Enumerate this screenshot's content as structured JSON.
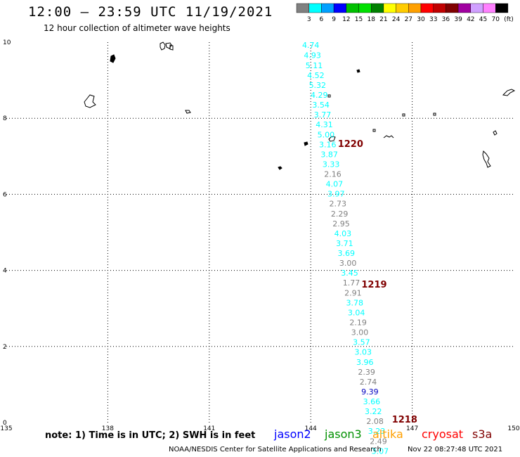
{
  "title": "12:00 – 23:59 UTC 11/19/2021",
  "subtitle": "12 hour collection of altimeter wave heights",
  "note": "note: 1) Time is in UTC; 2) SWH is in feet",
  "credit": "NOAA/NESDIS Center for Satellite Applications and Research",
  "timestamp": "Nov 22 08:27:48 UTC 2021",
  "colorbar": {
    "labels": [
      "3",
      "6",
      "9",
      "12",
      "15",
      "18",
      "21",
      "24",
      "27",
      "30",
      "33",
      "36",
      "39",
      "42",
      "45",
      "70"
    ],
    "unit": "(ft)",
    "colors": [
      "#808080",
      "#00ffff",
      "#00a0ff",
      "#0000ff",
      "#00c000",
      "#00e000",
      "#008000",
      "#ffff00",
      "#ffcc00",
      "#ffa000",
      "#ff0000",
      "#c00000",
      "#800000",
      "#a000a0",
      "#d0a0ff",
      "#ff80ff",
      "#000000"
    ]
  },
  "axes": {
    "x_ticks": [
      "135",
      "138",
      "141",
      "144",
      "147",
      "150"
    ],
    "y_ticks": [
      "0",
      "2",
      "4",
      "6",
      "8",
      "10"
    ],
    "lon_range": [
      135,
      150
    ],
    "lat_range": [
      0,
      10
    ]
  },
  "satellites": [
    {
      "name": "jason2",
      "color": "#0000ff"
    },
    {
      "name": "jason3",
      "color": "#009000"
    },
    {
      "name": "altika",
      "color": "#ffa000"
    },
    {
      "name": "cryosat",
      "color": "#ff0000"
    },
    {
      "name": "s3a",
      "color": "#800000"
    }
  ],
  "time_labels": [
    {
      "text": "1220",
      "lon": 144.8,
      "lat": 7.25
    },
    {
      "text": "1219",
      "lon": 145.5,
      "lat": 3.55
    },
    {
      "text": "1218",
      "lon": 146.4,
      "lat": 0.0
    }
  ],
  "observations": [
    {
      "lon": 144.0,
      "lat": 9.85,
      "swh": "4.74",
      "color": "#00ffff"
    },
    {
      "lon": 144.05,
      "lat": 9.58,
      "swh": "4.93",
      "color": "#00ffff"
    },
    {
      "lon": 144.1,
      "lat": 9.32,
      "swh": "5.11",
      "color": "#00ffff"
    },
    {
      "lon": 144.15,
      "lat": 9.06,
      "swh": "4.52",
      "color": "#00ffff"
    },
    {
      "lon": 144.2,
      "lat": 8.8,
      "swh": "5.32",
      "color": "#00ffff"
    },
    {
      "lon": 144.25,
      "lat": 8.54,
      "swh": "4.29",
      "color": "#00ffff"
    },
    {
      "lon": 144.3,
      "lat": 8.28,
      "swh": "3.54",
      "color": "#00ffff"
    },
    {
      "lon": 144.35,
      "lat": 8.02,
      "swh": "3.77",
      "color": "#00ffff"
    },
    {
      "lon": 144.4,
      "lat": 7.76,
      "swh": "4.31",
      "color": "#00ffff"
    },
    {
      "lon": 144.45,
      "lat": 7.5,
      "swh": "5.00",
      "color": "#00ffff"
    },
    {
      "lon": 144.5,
      "lat": 7.24,
      "swh": "3.16",
      "color": "#00ffff"
    },
    {
      "lon": 144.55,
      "lat": 6.98,
      "swh": "3.87",
      "color": "#00ffff"
    },
    {
      "lon": 144.6,
      "lat": 6.72,
      "swh": "3.33",
      "color": "#00ffff"
    },
    {
      "lon": 144.65,
      "lat": 6.46,
      "swh": "2.16",
      "color": "#808080"
    },
    {
      "lon": 144.7,
      "lat": 6.2,
      "swh": "4.07",
      "color": "#00ffff"
    },
    {
      "lon": 144.75,
      "lat": 5.94,
      "swh": "3.97",
      "color": "#00ffff"
    },
    {
      "lon": 144.8,
      "lat": 5.68,
      "swh": "2.73",
      "color": "#808080"
    },
    {
      "lon": 144.85,
      "lat": 5.42,
      "swh": "2.29",
      "color": "#808080"
    },
    {
      "lon": 144.9,
      "lat": 5.16,
      "swh": "2.95",
      "color": "#808080"
    },
    {
      "lon": 144.95,
      "lat": 4.9,
      "swh": "4.03",
      "color": "#00ffff"
    },
    {
      "lon": 145.0,
      "lat": 4.64,
      "swh": "3.71",
      "color": "#00ffff"
    },
    {
      "lon": 145.05,
      "lat": 4.38,
      "swh": "3.69",
      "color": "#00ffff"
    },
    {
      "lon": 145.1,
      "lat": 4.12,
      "swh": "3.00",
      "color": "#808080"
    },
    {
      "lon": 145.15,
      "lat": 3.86,
      "swh": "3.45",
      "color": "#00ffff"
    },
    {
      "lon": 145.2,
      "lat": 3.6,
      "swh": "1.77",
      "color": "#808080"
    },
    {
      "lon": 145.25,
      "lat": 3.34,
      "swh": "2.91",
      "color": "#808080"
    },
    {
      "lon": 145.3,
      "lat": 3.08,
      "swh": "3.78",
      "color": "#00ffff"
    },
    {
      "lon": 145.35,
      "lat": 2.82,
      "swh": "3.04",
      "color": "#00ffff"
    },
    {
      "lon": 145.4,
      "lat": 2.56,
      "swh": "2.19",
      "color": "#808080"
    },
    {
      "lon": 145.45,
      "lat": 2.3,
      "swh": "3.00",
      "color": "#808080"
    },
    {
      "lon": 145.5,
      "lat": 2.04,
      "swh": "3.57",
      "color": "#00ffff"
    },
    {
      "lon": 145.55,
      "lat": 1.78,
      "swh": "3.03",
      "color": "#00ffff"
    },
    {
      "lon": 145.6,
      "lat": 1.52,
      "swh": "3.96",
      "color": "#00ffff"
    },
    {
      "lon": 145.65,
      "lat": 1.26,
      "swh": "2.39",
      "color": "#808080"
    },
    {
      "lon": 145.7,
      "lat": 1.0,
      "swh": "2.74",
      "color": "#808080"
    },
    {
      "lon": 145.75,
      "lat": 0.74,
      "swh": "9.39",
      "color": "#0000c0"
    },
    {
      "lon": 145.8,
      "lat": 0.48,
      "swh": "3.66",
      "color": "#00ffff"
    },
    {
      "lon": 145.85,
      "lat": 0.22,
      "swh": "3.22",
      "color": "#00ffff"
    },
    {
      "lon": 145.9,
      "lat": -0.04,
      "swh": "2.08",
      "color": "#808080"
    },
    {
      "lon": 145.95,
      "lat": -0.3,
      "swh": "3.23",
      "color": "#00ffff"
    },
    {
      "lon": 146.0,
      "lat": -0.56,
      "swh": "2.49",
      "color": "#808080"
    },
    {
      "lon": 146.05,
      "lat": -0.82,
      "swh": "3.07",
      "color": "#00ffff"
    },
    {
      "lon": 146.1,
      "lat": -1.08,
      "swh": "3.82",
      "color": "#00ffff"
    }
  ]
}
